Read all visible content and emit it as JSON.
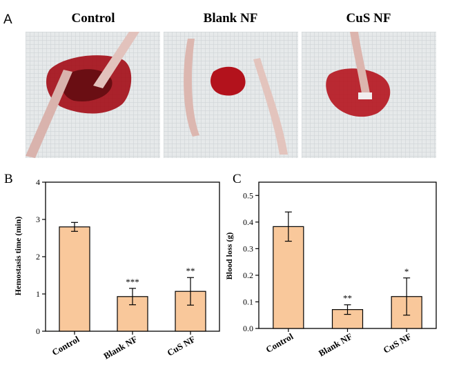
{
  "panel_labels": {
    "a": "A",
    "b": "B",
    "c": "C"
  },
  "photos": [
    {
      "title": "Control"
    },
    {
      "title": "Blank NF"
    },
    {
      "title": "CuS NF"
    }
  ],
  "colors": {
    "bar_fill": "#f9c89b",
    "bar_stroke": "#000000",
    "blood": "#b3121c",
    "gauze": "#e9ecec"
  },
  "chart_data": [
    {
      "type": "bar",
      "panel": "B",
      "categories": [
        "Control",
        "Blank NF",
        "CuS NF"
      ],
      "values": [
        2.8,
        0.93,
        1.07
      ],
      "errors": [
        0.12,
        0.22,
        0.37
      ],
      "significance": [
        "",
        "***",
        "**"
      ],
      "title": "",
      "xlabel": "",
      "ylabel": "Hemostasis time (min)",
      "ylim": [
        0,
        4
      ],
      "yticks": [
        "0",
        "1",
        "2",
        "3",
        "4"
      ],
      "grid": false
    },
    {
      "type": "bar",
      "panel": "C",
      "categories": [
        "Control",
        "Blank NF",
        "CuS NF"
      ],
      "values": [
        0.383,
        0.071,
        0.12
      ],
      "errors": [
        0.055,
        0.018,
        0.07
      ],
      "significance": [
        "",
        "**",
        "*"
      ],
      "title": "",
      "xlabel": "",
      "ylabel": "Blood loss (g)",
      "ylim": [
        0,
        0.55
      ],
      "yticks": [
        "0.0",
        "0.1",
        "0.2",
        "0.3",
        "0.4",
        "0.5"
      ],
      "grid": false
    }
  ]
}
